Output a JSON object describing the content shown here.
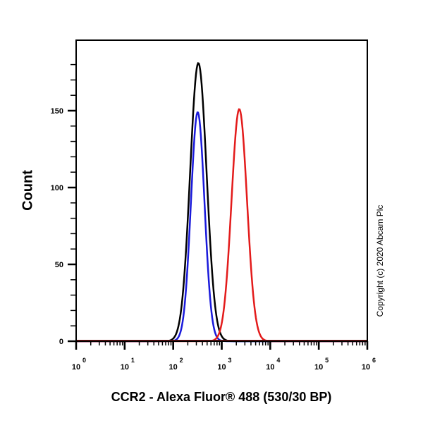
{
  "chart_data": {
    "type": "line",
    "subtype": "flow-cytometry-histogram-overlay",
    "title": "",
    "xlabel": "CCR2 - Alexa Fluor® 488 (530/30 BP)",
    "ylabel": "Count",
    "xscale": "log",
    "xlim": [
      1,
      1000000
    ],
    "ylim": [
      0,
      190
    ],
    "x_tick_labels": [
      "10^0",
      "10^1",
      "10^2",
      "10^3",
      "10^4",
      "10^5",
      "10^6"
    ],
    "y_tick_labels": [
      "0",
      "50",
      "100",
      "150"
    ],
    "y_ticks": [
      0,
      50,
      100,
      150
    ],
    "grid": false,
    "legend": null,
    "annotation": "Copyright (c) 2020 Abcam Plc",
    "series": [
      {
        "name": "black",
        "color": "#000000",
        "peak_x": 330,
        "peak_y": 181,
        "sigma_decades": 0.17,
        "points": [
          [
            60,
            0
          ],
          [
            100,
            2
          ],
          [
            150,
            15
          ],
          [
            200,
            70
          ],
          [
            250,
            140
          ],
          [
            300,
            178
          ],
          [
            330,
            181
          ],
          [
            370,
            165
          ],
          [
            420,
            110
          ],
          [
            500,
            45
          ],
          [
            600,
            12
          ],
          [
            800,
            1
          ],
          [
            1000,
            0
          ]
        ]
      },
      {
        "name": "blue",
        "color": "#1a1adb",
        "peak_x": 320,
        "peak_y": 149,
        "sigma_decades": 0.14,
        "points": [
          [
            90,
            0
          ],
          [
            130,
            3
          ],
          [
            180,
            25
          ],
          [
            230,
            90
          ],
          [
            280,
            140
          ],
          [
            320,
            149
          ],
          [
            360,
            135
          ],
          [
            420,
            90
          ],
          [
            500,
            40
          ],
          [
            600,
            10
          ],
          [
            800,
            1
          ],
          [
            1000,
            0
          ]
        ]
      },
      {
        "name": "red",
        "color": "#e31b1b",
        "peak_x": 2300,
        "peak_y": 151,
        "sigma_decades": 0.16,
        "points": [
          [
            700,
            0
          ],
          [
            1000,
            8
          ],
          [
            1400,
            45
          ],
          [
            1800,
            115
          ],
          [
            2300,
            151
          ],
          [
            2800,
            130
          ],
          [
            3500,
            70
          ],
          [
            4500,
            20
          ],
          [
            6000,
            3
          ],
          [
            8000,
            0
          ]
        ]
      }
    ]
  }
}
